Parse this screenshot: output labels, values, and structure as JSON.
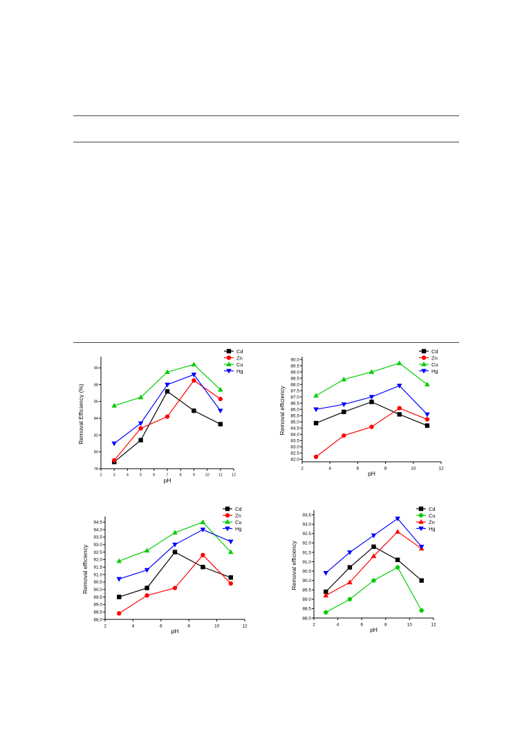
{
  "colors": {
    "Cd": "#000000",
    "Zn": "#ff0000",
    "Cu": "#00cc00",
    "Hg": "#0000ff"
  },
  "chart_data": [
    {
      "type": "line",
      "xlabel": "pH",
      "ylabel": "Removal Efficiency (%)",
      "xlim": [
        2,
        12
      ],
      "xticks": [
        2,
        3,
        4,
        5,
        6,
        7,
        8,
        9,
        10,
        11,
        12
      ],
      "ylim": [
        78,
        91
      ],
      "yticks": [
        78,
        80,
        82,
        84,
        86,
        88,
        90
      ],
      "grid": false,
      "legend": "top-right",
      "x": [
        3,
        5,
        7,
        9,
        11
      ],
      "series": [
        {
          "name": "Cd",
          "marker": "square",
          "values": [
            78.8,
            81.4,
            87.2,
            84.9,
            83.3
          ]
        },
        {
          "name": "Zn",
          "marker": "circle",
          "values": [
            79.0,
            82.8,
            84.2,
            88.5,
            86.3
          ]
        },
        {
          "name": "Cu",
          "marker": "triangle-up",
          "values": [
            85.5,
            86.5,
            89.5,
            90.4,
            87.4
          ]
        },
        {
          "name": "Hg",
          "marker": "triangle-down",
          "values": [
            81.0,
            83.4,
            88.0,
            89.2,
            84.9
          ]
        }
      ]
    },
    {
      "type": "line",
      "xlabel": "pH",
      "ylabel": "Removal efficiency",
      "xlim": [
        2,
        12
      ],
      "xticks": [
        2,
        4,
        6,
        8,
        10,
        12
      ],
      "ylim": [
        81.8,
        90.0
      ],
      "yticks": [
        82.0,
        82.5,
        83.0,
        83.5,
        84.0,
        84.5,
        85.0,
        85.5,
        86.0,
        86.5,
        87.0,
        87.5,
        88.0,
        88.5,
        89.0,
        89.5,
        90.0
      ],
      "grid": false,
      "legend": "top-right",
      "x": [
        3,
        5,
        7,
        9,
        11
      ],
      "series": [
        {
          "name": "Cd",
          "marker": "square",
          "values": [
            84.9,
            85.8,
            86.6,
            85.6,
            84.7
          ]
        },
        {
          "name": "Zn",
          "marker": "circle",
          "values": [
            82.2,
            83.9,
            84.6,
            86.1,
            85.2
          ]
        },
        {
          "name": "Cu",
          "marker": "triangle-up",
          "values": [
            87.1,
            88.4,
            89.0,
            89.7,
            88.0
          ]
        },
        {
          "name": "Hg",
          "marker": "triangle-down",
          "values": [
            86.0,
            86.4,
            87.0,
            87.9,
            85.6
          ]
        }
      ]
    },
    {
      "type": "line",
      "xlabel": "pH",
      "ylabel": "Removal efficiency",
      "xlim": [
        2,
        12
      ],
      "xticks": [
        2,
        4,
        6,
        8,
        10,
        12
      ],
      "ylim": [
        88.0,
        94.7
      ],
      "yticks": [
        88.0,
        88.5,
        89.0,
        89.5,
        90.0,
        90.5,
        91.0,
        91.5,
        92.0,
        92.5,
        93.0,
        93.5,
        94.0,
        94.5
      ],
      "grid": false,
      "legend": "top-right",
      "x": [
        3,
        5,
        7,
        9,
        11
      ],
      "series": [
        {
          "name": "Cd",
          "marker": "square",
          "values": [
            89.5,
            90.1,
            92.5,
            91.5,
            90.8
          ]
        },
        {
          "name": "Zn",
          "marker": "circle",
          "values": [
            88.4,
            89.6,
            90.1,
            92.3,
            90.4
          ]
        },
        {
          "name": "Cu",
          "marker": "triangle-up",
          "values": [
            91.9,
            92.6,
            93.8,
            94.5,
            92.5
          ]
        },
        {
          "name": "Hg",
          "marker": "triangle-down",
          "values": [
            90.7,
            91.3,
            93.0,
            94.0,
            93.2
          ]
        }
      ]
    },
    {
      "type": "line",
      "xlabel": "pH",
      "ylabel": "Removal efficiency",
      "xlim": [
        2,
        12
      ],
      "xticks": [
        2,
        4,
        6,
        8,
        10,
        12
      ],
      "ylim": [
        88.0,
        93.6
      ],
      "yticks": [
        88.0,
        88.5,
        89.0,
        89.5,
        90.0,
        90.5,
        91.0,
        91.5,
        92.0,
        92.5,
        93.0,
        93.5
      ],
      "grid": false,
      "legend": "top-right",
      "x": [
        3,
        5,
        7,
        9,
        11
      ],
      "series": [
        {
          "name": "Cd",
          "marker": "square",
          "values": [
            89.4,
            90.7,
            91.8,
            91.1,
            90.0
          ]
        },
        {
          "name": "Cu",
          "marker": "circle",
          "values": [
            88.3,
            89.0,
            90.0,
            90.7,
            88.4
          ]
        },
        {
          "name": "Zn",
          "marker": "triangle-up",
          "values": [
            89.2,
            89.9,
            91.3,
            92.6,
            91.7
          ]
        },
        {
          "name": "Hg",
          "marker": "triangle-down",
          "values": [
            90.4,
            91.5,
            92.4,
            93.3,
            91.8
          ]
        }
      ]
    }
  ]
}
